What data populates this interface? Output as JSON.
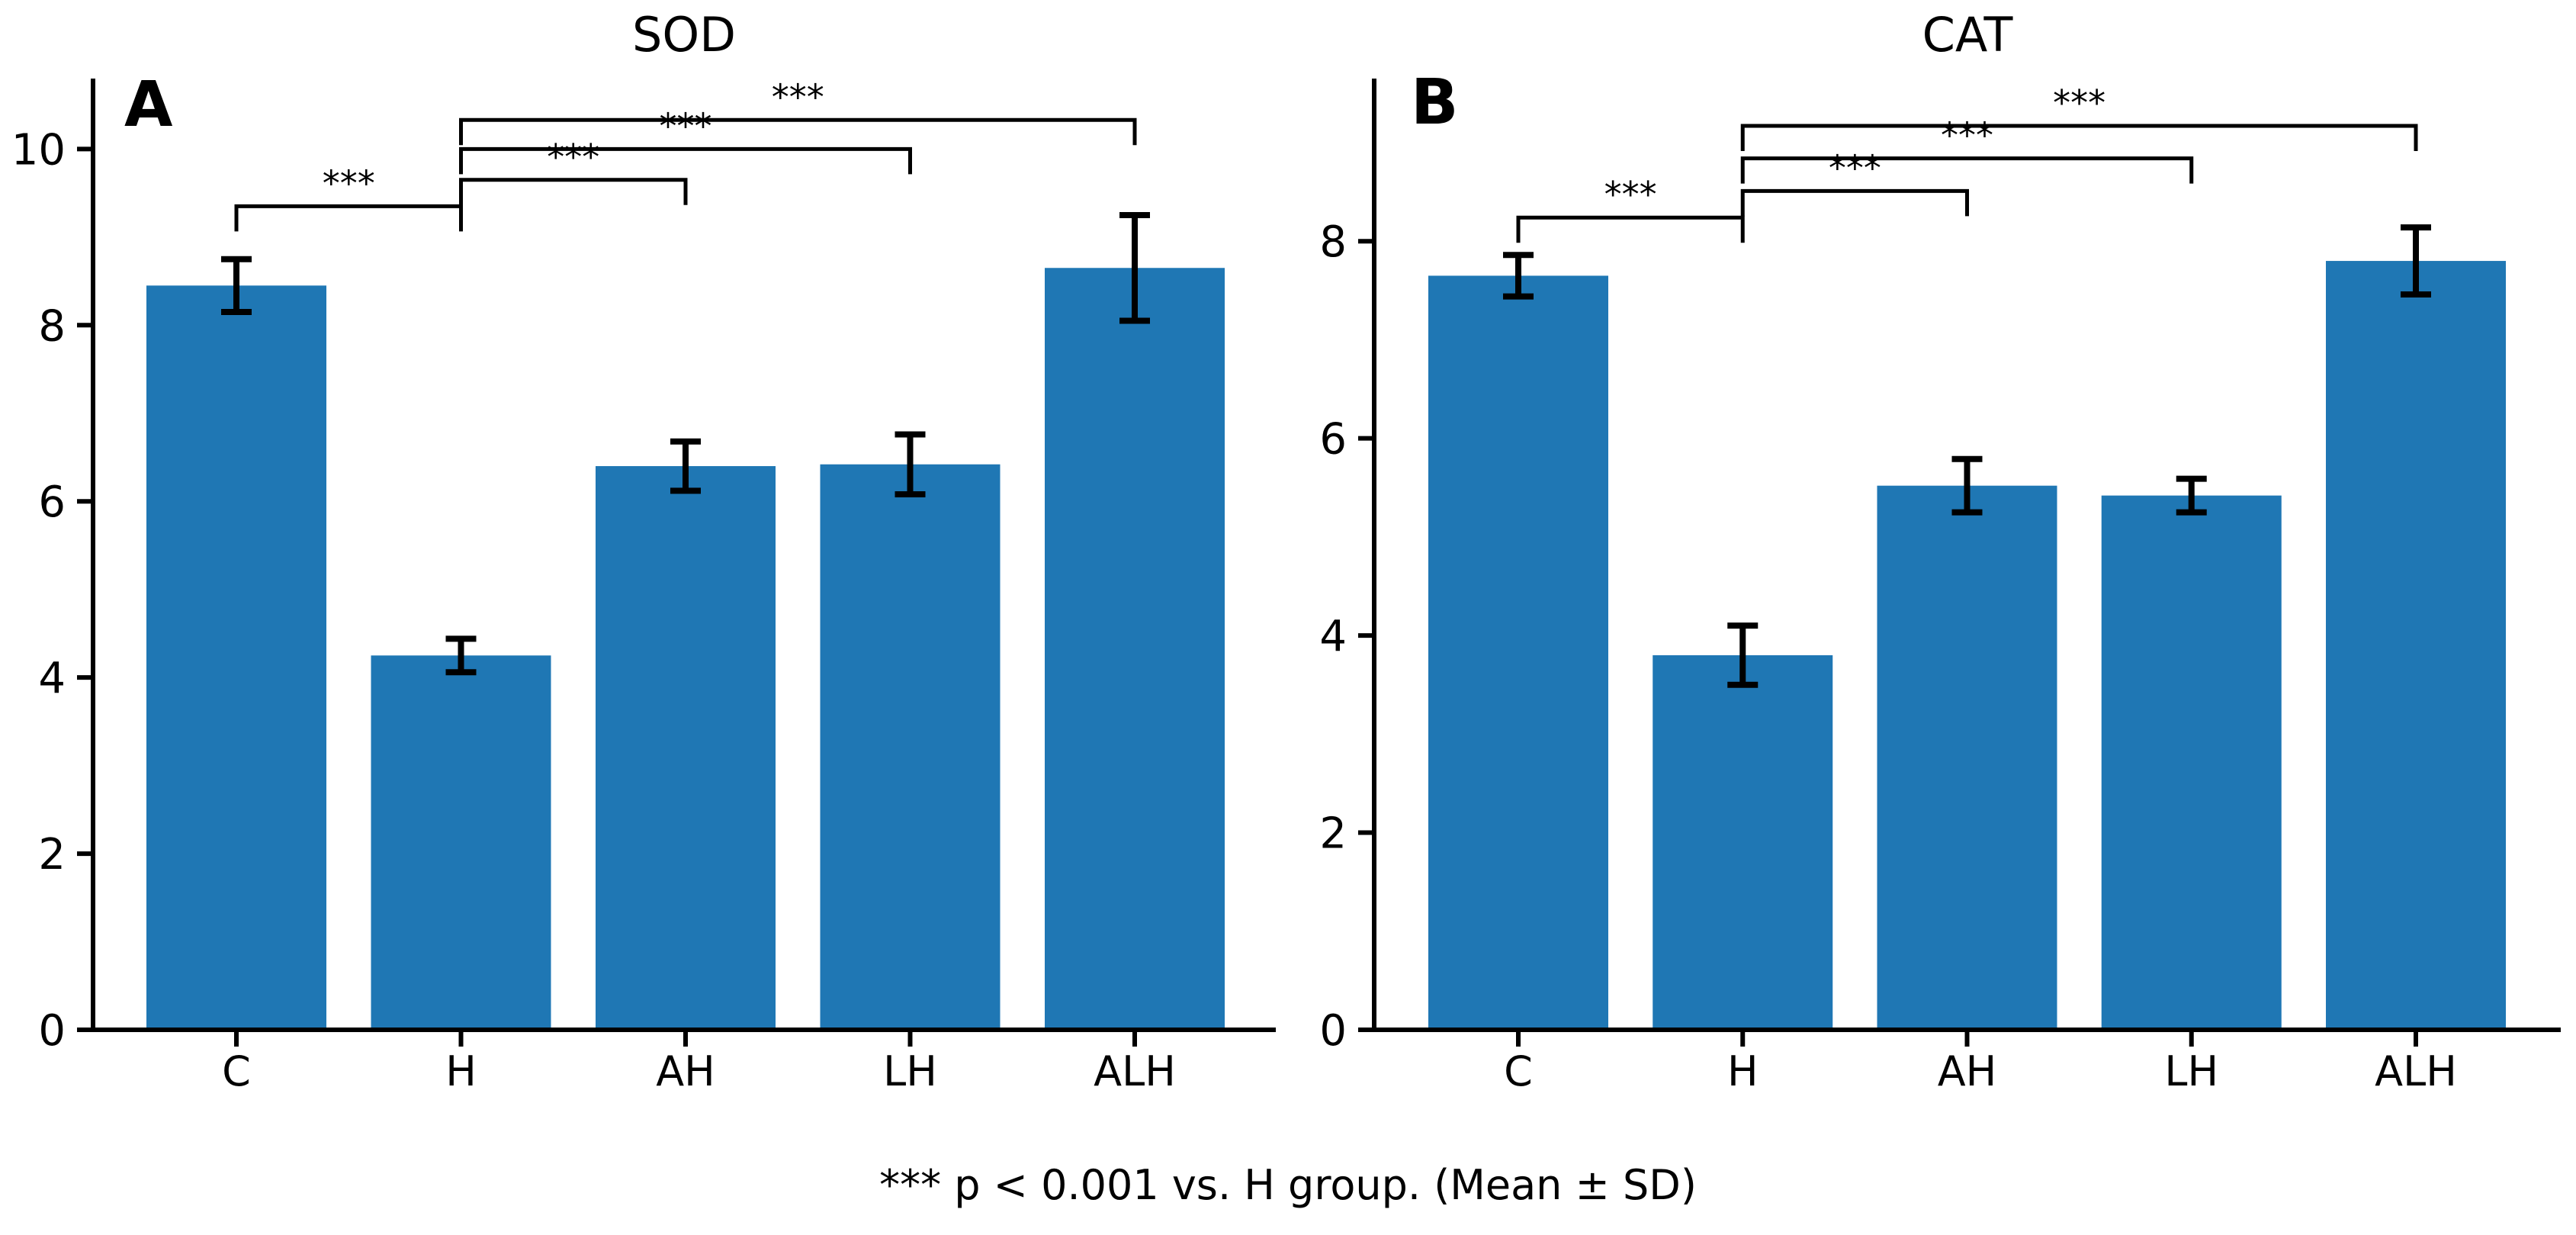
{
  "figure": {
    "footnote": "*** p < 0.001 vs. H group. (Mean ± SD)",
    "bar_color": "#1f77b4",
    "axis_color": "#000000",
    "background_color": "#ffffff"
  },
  "chart_data": [
    {
      "type": "bar",
      "panel_label": "A",
      "title": "SOD",
      "xlabel": "",
      "ylabel": "",
      "categories": [
        "C",
        "H",
        "AH",
        "LH",
        "ALH"
      ],
      "series": [
        {
          "name": "Mean",
          "values": [
            8.45,
            4.25,
            6.4,
            6.42,
            8.65
          ],
          "sd": [
            0.3,
            0.19,
            0.28,
            0.34,
            0.6
          ]
        }
      ],
      "ylim": [
        0,
        10.8
      ],
      "yticks": [
        0,
        2,
        4,
        6,
        8,
        10
      ],
      "grid": false,
      "legend": "none",
      "error_bars": "Mean ± SD",
      "significance": [
        {
          "group1": "C",
          "group2": "H",
          "label": "***",
          "height": 9.35
        },
        {
          "group1": "H",
          "group2": "AH",
          "label": "***",
          "height": 9.65
        },
        {
          "group1": "H",
          "group2": "LH",
          "label": "***",
          "height": 10.0
        },
        {
          "group1": "H",
          "group2": "ALH",
          "label": "***",
          "height": 10.33
        }
      ]
    },
    {
      "type": "bar",
      "panel_label": "B",
      "title": "CAT",
      "xlabel": "",
      "ylabel": "",
      "categories": [
        "C",
        "H",
        "AH",
        "LH",
        "ALH"
      ],
      "series": [
        {
          "name": "Mean",
          "values": [
            7.65,
            3.8,
            5.52,
            5.42,
            7.8
          ],
          "sd": [
            0.21,
            0.3,
            0.27,
            0.17,
            0.34
          ]
        }
      ],
      "ylim": [
        0,
        9.65
      ],
      "yticks": [
        0,
        2,
        4,
        6,
        8
      ],
      "grid": false,
      "legend": "none",
      "error_bars": "Mean ± SD",
      "significance": [
        {
          "group1": "C",
          "group2": "H",
          "label": "***",
          "height": 8.24
        },
        {
          "group1": "H",
          "group2": "AH",
          "label": "***",
          "height": 8.51
        },
        {
          "group1": "H",
          "group2": "LH",
          "label": "***",
          "height": 8.84
        },
        {
          "group1": "H",
          "group2": "ALH",
          "label": "***",
          "height": 9.17
        }
      ]
    }
  ]
}
